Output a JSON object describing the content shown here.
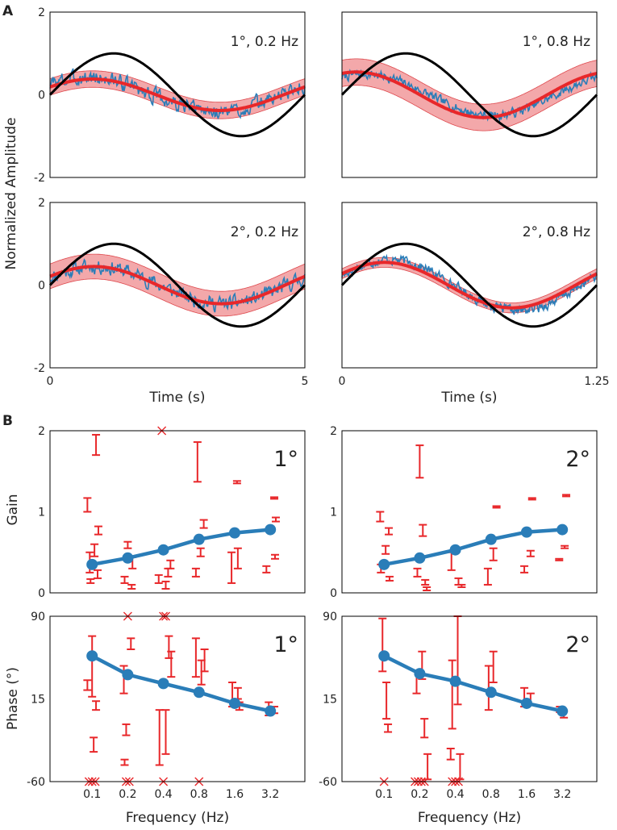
{
  "figure": {
    "panel_labels": [
      "A",
      "B"
    ],
    "ylabel_A": "Normalized Amplitude",
    "xlabel_A": "Time (s)",
    "ylabel_gain": "Gain",
    "ylabel_phase": "Phase (°)",
    "xlabel_B": "Frequency (Hz)"
  },
  "colors": {
    "stimulus": "#000000",
    "response": "#2a7db8",
    "fit": "#e8272a",
    "band": "#f29a9c",
    "band_edge": "#d9292e",
    "mean_line": "#2a7db8",
    "points": "#e8272a"
  },
  "chart_data": [
    {
      "id": "A-1deg-0.2Hz",
      "type": "line",
      "annotation": "1°, 0.2 Hz",
      "xlim": [
        0,
        5
      ],
      "ylim": [
        -2,
        2
      ],
      "x_ticks": [],
      "y_ticks": [
        -2,
        0,
        2
      ],
      "stimulus_amplitude": 1,
      "fit": {
        "amplitude": 0.38,
        "phase_deg": 30,
        "band": 0.2
      },
      "response": {
        "amplitude": 0.42,
        "phase_deg": 35,
        "noise": 0.16,
        "seed": 3
      }
    },
    {
      "id": "A-1deg-0.8Hz",
      "type": "line",
      "annotation": "1°, 0.8 Hz",
      "xlim": [
        0,
        1.25
      ],
      "ylim": [
        -2,
        2
      ],
      "x_ticks": [],
      "y_ticks": [],
      "stimulus_amplitude": 1,
      "fit": {
        "amplitude": 0.55,
        "phase_deg": 70,
        "band": 0.32
      },
      "response": {
        "amplitude": 0.5,
        "phase_deg": 58,
        "noise": 0.1,
        "seed": 7
      }
    },
    {
      "id": "A-2deg-0.2Hz",
      "type": "line",
      "annotation": "2°, 0.2 Hz",
      "xlim": [
        0,
        5
      ],
      "ylim": [
        -2,
        2
      ],
      "x_ticks": [
        0,
        5
      ],
      "y_ticks": [
        -2,
        0,
        2
      ],
      "stimulus_amplitude": 1,
      "fit": {
        "amplitude": 0.45,
        "phase_deg": 28,
        "band": 0.3
      },
      "response": {
        "amplitude": 0.45,
        "phase_deg": 25,
        "noise": 0.15,
        "seed": 11
      }
    },
    {
      "id": "A-2deg-0.8Hz",
      "type": "line",
      "annotation": "2°, 0.8 Hz",
      "xlim": [
        0,
        1.25
      ],
      "ylim": [
        -2,
        2
      ],
      "x_ticks": [
        0,
        1.25
      ],
      "y_ticks": [],
      "stimulus_amplitude": 1,
      "fit": {
        "amplitude": 0.55,
        "phase_deg": 30,
        "band": 0.12
      },
      "response": {
        "amplitude": 0.62,
        "phase_deg": 22,
        "noise": 0.1,
        "seed": 17
      }
    },
    {
      "id": "B-gain-1deg",
      "type": "errorbar",
      "annotation": "1°",
      "categories": [
        "0.1",
        "0.2",
        "0.4",
        "0.8",
        "1.6",
        "3.2"
      ],
      "ylim": [
        0,
        2
      ],
      "y_ticks": [
        0,
        1,
        2
      ],
      "mean": [
        0.35,
        0.43,
        0.53,
        0.66,
        0.74,
        0.78
      ],
      "subjects": [
        {
          "c": 0,
          "dx": -0.06,
          "lo": 1.0,
          "hi": 1.17
        },
        {
          "c": 0,
          "dx": 0.05,
          "lo": 1.7,
          "hi": 1.95
        },
        {
          "c": 0,
          "dx": 0.08,
          "lo": 0.72,
          "hi": 0.82
        },
        {
          "c": 0,
          "dx": 0.03,
          "lo": 0.45,
          "hi": 0.6
        },
        {
          "c": 0,
          "dx": -0.03,
          "lo": 0.25,
          "hi": 0.5
        },
        {
          "c": 0,
          "dx": 0.07,
          "lo": 0.18,
          "hi": 0.28
        },
        {
          "c": 0,
          "dx": -0.02,
          "lo": 0.12,
          "hi": 0.17
        },
        {
          "c": 1,
          "dx": 0.0,
          "lo": 0.55,
          "hi": 0.63
        },
        {
          "c": 1,
          "dx": 0.06,
          "lo": 0.3,
          "hi": 0.44
        },
        {
          "c": 1,
          "dx": -0.04,
          "lo": 0.12,
          "hi": 0.2
        },
        {
          "c": 1,
          "dx": 0.05,
          "lo": 0.05,
          "hi": 0.1
        },
        {
          "c": 2,
          "dx": -0.06,
          "lo": 0.12,
          "hi": 0.22
        },
        {
          "c": 2,
          "dx": 0.03,
          "lo": 0.05,
          "hi": 0.14
        },
        {
          "c": 2,
          "dx": 0.06,
          "lo": 0.2,
          "hi": 0.3
        },
        {
          "c": 2,
          "dx": 0.09,
          "lo": 0.3,
          "hi": 0.4
        },
        {
          "c": 3,
          "dx": -0.04,
          "lo": 0.2,
          "hi": 0.3
        },
        {
          "c": 3,
          "dx": 0.02,
          "lo": 0.45,
          "hi": 0.55
        },
        {
          "c": 3,
          "dx": 0.06,
          "lo": 0.8,
          "hi": 0.9
        },
        {
          "c": 3,
          "dx": -0.02,
          "lo": 1.37,
          "hi": 1.86
        },
        {
          "c": 4,
          "dx": -0.04,
          "lo": 0.12,
          "hi": 0.5
        },
        {
          "c": 4,
          "dx": 0.04,
          "lo": 0.3,
          "hi": 0.55
        },
        {
          "c": 4,
          "dx": 0.03,
          "lo": 1.35,
          "hi": 1.38
        },
        {
          "c": 5,
          "dx": -0.05,
          "lo": 0.25,
          "hi": 0.33
        },
        {
          "c": 5,
          "dx": 0.06,
          "lo": 0.42,
          "hi": 0.47
        },
        {
          "c": 5,
          "dx": 0.07,
          "lo": 0.88,
          "hi": 0.93
        },
        {
          "c": 5,
          "dx": 0.05,
          "lo": 1.16,
          "hi": 1.18
        }
      ],
      "clipped": [
        {
          "c": 2,
          "dx": -0.02,
          "y": 2
        }
      ]
    },
    {
      "id": "B-gain-2deg",
      "type": "errorbar",
      "annotation": "2°",
      "categories": [
        "0.1",
        "0.2",
        "0.4",
        "0.8",
        "1.6",
        "3.2"
      ],
      "ylim": [
        0,
        2
      ],
      "y_ticks": [
        0,
        1,
        2
      ],
      "mean": [
        0.35,
        0.43,
        0.53,
        0.66,
        0.75,
        0.78
      ],
      "subjects": [
        {
          "c": 0,
          "dx": -0.05,
          "lo": 0.88,
          "hi": 1.0
        },
        {
          "c": 0,
          "dx": 0.06,
          "lo": 0.72,
          "hi": 0.8
        },
        {
          "c": 0,
          "dx": 0.02,
          "lo": 0.48,
          "hi": 0.58
        },
        {
          "c": 0,
          "dx": -0.04,
          "lo": 0.25,
          "hi": 0.35
        },
        {
          "c": 0,
          "dx": 0.07,
          "lo": 0.15,
          "hi": 0.2
        },
        {
          "c": 1,
          "dx": 0.0,
          "lo": 1.42,
          "hi": 1.82
        },
        {
          "c": 1,
          "dx": 0.04,
          "lo": 0.7,
          "hi": 0.84
        },
        {
          "c": 1,
          "dx": -0.03,
          "lo": 0.2,
          "hi": 0.3
        },
        {
          "c": 1,
          "dx": 0.07,
          "lo": 0.1,
          "hi": 0.16
        },
        {
          "c": 1,
          "dx": 0.09,
          "lo": 0.03,
          "hi": 0.07
        },
        {
          "c": 2,
          "dx": -0.05,
          "lo": 0.28,
          "hi": 0.5
        },
        {
          "c": 2,
          "dx": 0.04,
          "lo": 0.1,
          "hi": 0.18
        },
        {
          "c": 2,
          "dx": 0.08,
          "lo": 0.07,
          "hi": 0.1
        },
        {
          "c": 3,
          "dx": -0.04,
          "lo": 0.1,
          "hi": 0.3
        },
        {
          "c": 3,
          "dx": 0.03,
          "lo": 0.4,
          "hi": 0.55
        },
        {
          "c": 3,
          "dx": 0.07,
          "lo": 1.05,
          "hi": 1.07
        },
        {
          "c": 4,
          "dx": -0.03,
          "lo": 0.25,
          "hi": 0.33
        },
        {
          "c": 4,
          "dx": 0.05,
          "lo": 0.45,
          "hi": 0.52
        },
        {
          "c": 4,
          "dx": 0.07,
          "lo": 1.15,
          "hi": 1.17
        },
        {
          "c": 5,
          "dx": -0.04,
          "lo": 0.4,
          "hi": 0.42
        },
        {
          "c": 5,
          "dx": 0.03,
          "lo": 0.55,
          "hi": 0.58
        },
        {
          "c": 5,
          "dx": 0.05,
          "lo": 1.19,
          "hi": 1.21
        }
      ],
      "clipped": []
    },
    {
      "id": "B-phase-1deg",
      "type": "errorbar",
      "annotation": "1°",
      "categories": [
        "0.1",
        "0.2",
        "0.4",
        "0.8",
        "1.6",
        "3.2"
      ],
      "ylim": [
        -60,
        90
      ],
      "y_ticks": [
        -60,
        15,
        90
      ],
      "mean": [
        54,
        37,
        29,
        21,
        11,
        4
      ],
      "subjects": [
        {
          "c": 0,
          "dx": 0.0,
          "lo": 17,
          "hi": 72
        },
        {
          "c": 0,
          "dx": -0.06,
          "lo": 23,
          "hi": 32
        },
        {
          "c": 0,
          "dx": 0.05,
          "lo": 5,
          "hi": 13
        },
        {
          "c": 0,
          "dx": 0.02,
          "lo": -33,
          "hi": -20
        },
        {
          "c": 1,
          "dx": -0.05,
          "lo": 20,
          "hi": 45
        },
        {
          "c": 1,
          "dx": 0.04,
          "lo": 60,
          "hi": 70
        },
        {
          "c": 1,
          "dx": -0.02,
          "lo": -18,
          "hi": -8
        },
        {
          "c": 1,
          "dx": -0.04,
          "lo": -45,
          "hi": -40
        },
        {
          "c": 2,
          "dx": -0.05,
          "lo": -45,
          "hi": 5
        },
        {
          "c": 2,
          "dx": 0.03,
          "lo": -35,
          "hi": 5
        },
        {
          "c": 2,
          "dx": 0.07,
          "lo": 52,
          "hi": 72
        },
        {
          "c": 2,
          "dx": 0.1,
          "lo": 35,
          "hi": 58
        },
        {
          "c": 3,
          "dx": -0.04,
          "lo": 35,
          "hi": 70
        },
        {
          "c": 3,
          "dx": 0.03,
          "lo": 28,
          "hi": 50
        },
        {
          "c": 3,
          "dx": 0.07,
          "lo": 40,
          "hi": 60
        },
        {
          "c": 4,
          "dx": -0.03,
          "lo": 8,
          "hi": 30
        },
        {
          "c": 4,
          "dx": 0.04,
          "lo": 15,
          "hi": 25
        },
        {
          "c": 4,
          "dx": 0.06,
          "lo": 5,
          "hi": 12
        },
        {
          "c": 5,
          "dx": -0.02,
          "lo": 0,
          "hi": 12
        },
        {
          "c": 5,
          "dx": 0.05,
          "lo": 2,
          "hi": 8
        }
      ],
      "clipped": [
        {
          "c": 0,
          "dx": -0.04,
          "y": -60
        },
        {
          "c": 0,
          "dx": 0.0,
          "y": -60
        },
        {
          "c": 0,
          "dx": 0.04,
          "y": -60
        },
        {
          "c": 1,
          "dx": -0.02,
          "y": -60
        },
        {
          "c": 1,
          "dx": 0.02,
          "y": -60
        },
        {
          "c": 1,
          "dx": 0.0,
          "y": 90
        },
        {
          "c": 2,
          "dx": 0.0,
          "y": 90
        },
        {
          "c": 2,
          "dx": 0.03,
          "y": 90
        },
        {
          "c": 2,
          "dx": 0.0,
          "y": -60
        },
        {
          "c": 3,
          "dx": 0.0,
          "y": -60
        }
      ]
    },
    {
      "id": "B-phase-2deg",
      "type": "errorbar",
      "annotation": "2°",
      "categories": [
        "0.1",
        "0.2",
        "0.4",
        "0.8",
        "1.6",
        "3.2"
      ],
      "ylim": [
        -60,
        90
      ],
      "y_ticks": [
        -60,
        15,
        90
      ],
      "mean": [
        54,
        38,
        31,
        21,
        11,
        4
      ],
      "subjects": [
        {
          "c": 0,
          "dx": -0.02,
          "lo": 40,
          "hi": 88
        },
        {
          "c": 0,
          "dx": 0.03,
          "lo": -3,
          "hi": 30
        },
        {
          "c": 0,
          "dx": 0.05,
          "lo": -15,
          "hi": -8
        },
        {
          "c": 1,
          "dx": -0.04,
          "lo": 20,
          "hi": 40
        },
        {
          "c": 1,
          "dx": 0.03,
          "lo": 33,
          "hi": 58
        },
        {
          "c": 1,
          "dx": 0.06,
          "lo": -20,
          "hi": -3
        },
        {
          "c": 1,
          "dx": 0.1,
          "lo": -58,
          "hi": -35
        },
        {
          "c": 2,
          "dx": -0.04,
          "lo": -12,
          "hi": 50
        },
        {
          "c": 2,
          "dx": 0.03,
          "lo": 10,
          "hi": 90
        },
        {
          "c": 2,
          "dx": -0.06,
          "lo": -40,
          "hi": -30
        },
        {
          "c": 2,
          "dx": 0.06,
          "lo": -58,
          "hi": -35
        },
        {
          "c": 3,
          "dx": -0.03,
          "lo": 5,
          "hi": 45
        },
        {
          "c": 3,
          "dx": 0.03,
          "lo": 30,
          "hi": 58
        },
        {
          "c": 4,
          "dx": -0.03,
          "lo": 8,
          "hi": 25
        },
        {
          "c": 4,
          "dx": 0.05,
          "lo": 10,
          "hi": 20
        },
        {
          "c": 5,
          "dx": -0.03,
          "lo": 3,
          "hi": 8
        },
        {
          "c": 5,
          "dx": 0.02,
          "lo": -2,
          "hi": 4
        }
      ],
      "clipped": [
        {
          "c": 0,
          "dx": 0.0,
          "y": -60
        },
        {
          "c": 1,
          "dx": -0.06,
          "y": -60
        },
        {
          "c": 1,
          "dx": -0.02,
          "y": -60
        },
        {
          "c": 1,
          "dx": 0.02,
          "y": -60
        },
        {
          "c": 1,
          "dx": 0.06,
          "y": -60
        },
        {
          "c": 2,
          "dx": -0.04,
          "y": -60
        },
        {
          "c": 2,
          "dx": 0.0,
          "y": -60
        },
        {
          "c": 2,
          "dx": 0.04,
          "y": -60
        }
      ]
    }
  ]
}
